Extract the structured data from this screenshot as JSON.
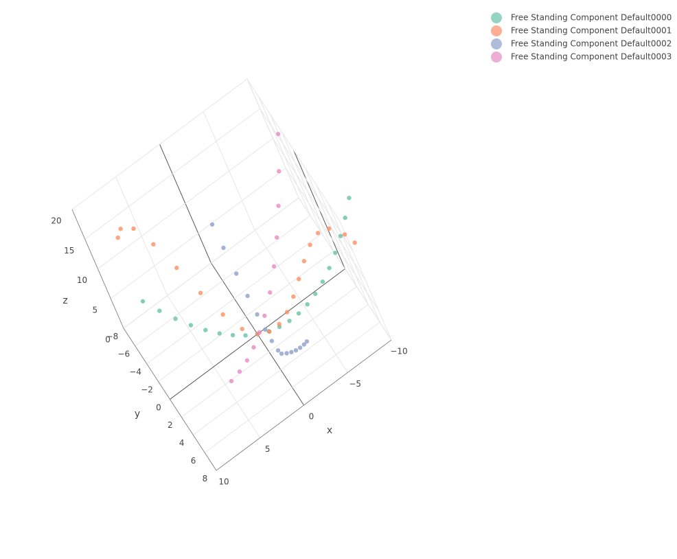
{
  "chart_data": {
    "type": "scatter3d",
    "x_label": "x",
    "y_label": "y",
    "z_label": "z",
    "xlim": [
      -10,
      10
    ],
    "ylim": [
      -8,
      8
    ],
    "zlim": [
      0,
      20
    ],
    "xticks": [
      {
        "value": -10,
        "label": "−10"
      },
      {
        "value": -5,
        "label": "−5"
      },
      0,
      5,
      10
    ],
    "yticks": [
      {
        "value": -8,
        "label": "−8"
      },
      {
        "value": -6,
        "label": "−6"
      },
      {
        "value": -4,
        "label": "−4"
      },
      {
        "value": -2,
        "label": "−2"
      },
      0,
      2,
      4,
      6,
      8
    ],
    "zticks": [
      0,
      5,
      10,
      15,
      20
    ],
    "grid": true,
    "legend": "top-right",
    "series": [
      {
        "name": "Free Standing Component Default0000",
        "color": "#66c2a5",
        "x": [
          8,
          7,
          6,
          5,
          4,
          3,
          2,
          1,
          0,
          -1,
          -2,
          -3,
          -4,
          -5,
          -6,
          -7,
          -8,
          -9,
          -10,
          -11,
          -12
        ],
        "y": [
          -4,
          -3.5,
          -3,
          -2.5,
          -2,
          -1.5,
          -1,
          -0.5,
          0,
          0.5,
          1,
          1.5,
          2,
          2.5,
          3,
          3.5,
          4,
          4.5,
          5,
          5.5,
          6
        ],
        "z": [
          8.32,
          6.37,
          4.68,
          3.25,
          2.08,
          1.17,
          0.52,
          0.13,
          0,
          0.13,
          0.52,
          1.17,
          2.08,
          3.25,
          4.68,
          6.37,
          8.32,
          10.53,
          13,
          15.73,
          18.72
        ]
      },
      {
        "name": "Free Standing Component Default0001",
        "color": "#fc8d62",
        "x": [
          7.5,
          7,
          6,
          5,
          4,
          3,
          2,
          1,
          0,
          -1,
          -2,
          -3,
          -4,
          -5,
          -6,
          -7,
          -8,
          -9,
          -10,
          -10.5
        ],
        "y": [
          -5.63,
          -5.25,
          -4.5,
          -3.75,
          -3,
          -2.25,
          -1.5,
          -0.75,
          0,
          0.75,
          1.5,
          2.25,
          3,
          3.75,
          4.5,
          5.25,
          6,
          6.75,
          7.5,
          7.88
        ],
        "z": [
          16.04,
          17.55,
          17.61,
          15,
          11.05,
          6.85,
          3.25,
          0.84,
          0,
          0.44,
          1.73,
          3.77,
          6.4,
          9.39,
          12.43,
          15.18,
          17.2,
          17.98,
          17,
          15.65
        ]
      },
      {
        "name": "Free Standing Component Default0002",
        "color": "#8da0cb",
        "x": [
          -3.23,
          -2.91,
          -2.5,
          -2.09,
          -1.68,
          -1.28,
          -0.87,
          -0.71,
          -0.54,
          -0.42,
          -0.3,
          -0.18,
          -0.06,
          0.07,
          0.16
        ],
        "y": [
          4.52,
          4.29,
          4,
          3.71,
          3.42,
          3.13,
          2.84,
          2.72,
          2.61,
          2.52,
          2.43,
          2.35,
          2.26,
          2.17,
          2.1
        ],
        "z": [
          1.98,
          1.48,
          0.94,
          0.53,
          0.24,
          0.06,
          0,
          0.54,
          2.16,
          4.08,
          6.62,
          9.75,
          13.5,
          17.85,
          21.77
        ]
      },
      {
        "name": "Free Standing Component Default0003",
        "color": "#e78ac3",
        "x": [
          4.36,
          3.27,
          2.18,
          1.09,
          0,
          -1.09,
          -2.46,
          -3.82,
          -5.18,
          -6.54,
          -7.91,
          -9.27
        ],
        "y": [
          2.09,
          1.92,
          1.76,
          1.59,
          1.42,
          1.25,
          1.05,
          0.84,
          0.63,
          0.42,
          0.21,
          0
        ],
        "z": [
          0,
          0.15,
          0.6,
          1.35,
          2.41,
          3.76,
          5.88,
          8.46,
          11.52,
          15.04,
          19.04,
          23.5
        ]
      }
    ]
  }
}
